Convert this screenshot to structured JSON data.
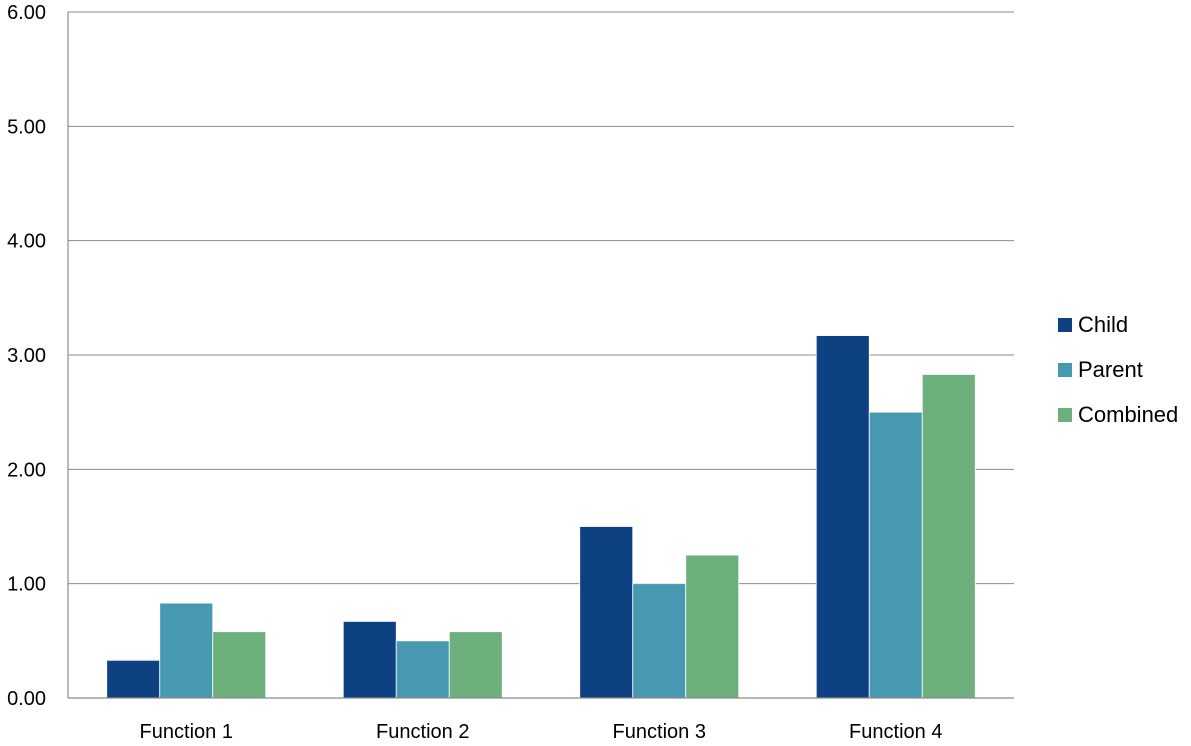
{
  "chart_data": {
    "type": "bar",
    "title": "",
    "xlabel": "",
    "ylabel": "",
    "categories": [
      "Function 1",
      "Function 2",
      "Function 3",
      "Function 4"
    ],
    "series": [
      {
        "name": "Child",
        "color": "#0e4182",
        "values": [
          0.33,
          0.67,
          1.5,
          3.17
        ]
      },
      {
        "name": "Parent",
        "color": "#4699b1",
        "values": [
          0.83,
          0.5,
          1.0,
          2.5
        ]
      },
      {
        "name": "Combined",
        "color": "#6db07e",
        "values": [
          0.58,
          0.58,
          1.25,
          2.83
        ]
      }
    ],
    "ylim": [
      0,
      6
    ],
    "yticks": [
      "0.00",
      "1.00",
      "2.00",
      "3.00",
      "4.00",
      "5.00",
      "6.00"
    ],
    "grid": true,
    "legend_position": "right"
  }
}
